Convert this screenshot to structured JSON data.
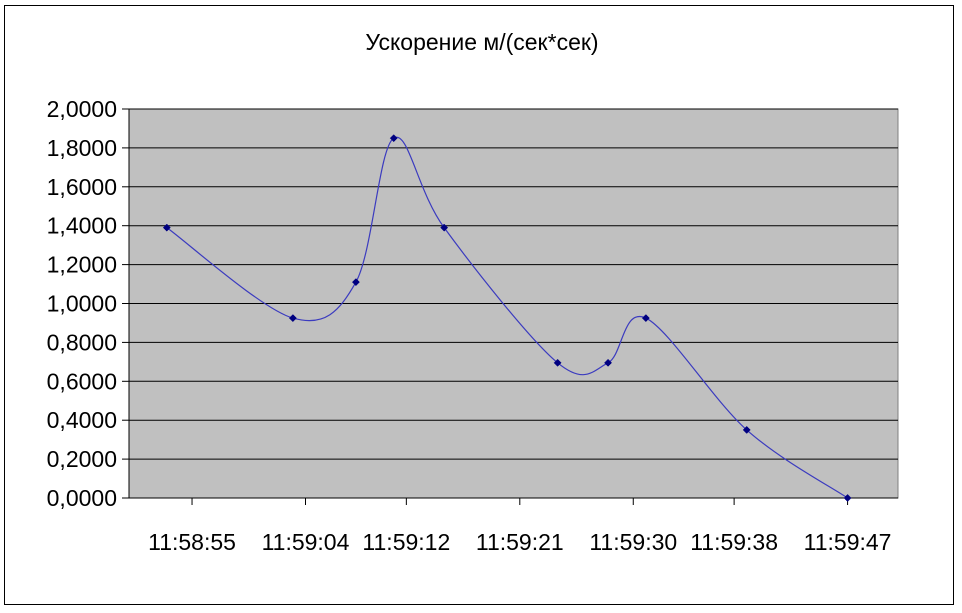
{
  "chart_data": {
    "type": "line",
    "title": "Ускорение м/(сек*сек)",
    "xlabel": "",
    "ylabel": "",
    "x_tick_labels": [
      "11:58:55",
      "11:59:04",
      "11:59:12",
      "11:59:21",
      "11:59:30",
      "11:59:38",
      "11:59:47"
    ],
    "x_axis_range": [
      "11:58:50",
      "11:59:51"
    ],
    "ylim": [
      0,
      2
    ],
    "y_ticks": [
      0,
      0.2,
      0.4,
      0.6,
      0.8,
      1.0,
      1.2,
      1.4,
      1.6,
      1.8,
      2.0
    ],
    "y_tick_labels": [
      "0,0000",
      "0,2000",
      "0,4000",
      "0,6000",
      "0,8000",
      "1,0000",
      "1,2000",
      "1,4000",
      "1,6000",
      "1,8000",
      "2,0000"
    ],
    "grid": true,
    "smoothed": true,
    "colors": {
      "plot_background": "#c0c0c0",
      "line": "#3b3bbf",
      "marker": "#000080",
      "gridline": "#000000"
    },
    "series": [
      {
        "x": [
          "11:58:53",
          "11:59:03",
          "11:59:08",
          "11:59:11",
          "11:59:15",
          "11:59:24",
          "11:59:28",
          "11:59:31",
          "11:59:39",
          "11:59:47"
        ],
        "y": [
          1.39,
          0.925,
          1.11,
          1.85,
          1.39,
          0.695,
          0.695,
          0.925,
          0.35,
          0.0
        ]
      }
    ]
  }
}
